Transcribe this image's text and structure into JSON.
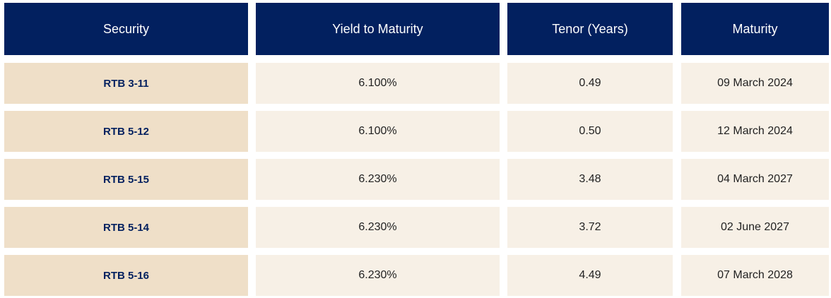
{
  "table": {
    "headers": [
      "Security",
      "Yield to Maturity",
      "Tenor (Years)",
      "Maturity"
    ],
    "rows": [
      [
        "RTB 3-11",
        "6.100%",
        "0.49",
        "09 March 2024"
      ],
      [
        "RTB 5-12",
        "6.100%",
        "0.50",
        "12 March 2024"
      ],
      [
        "RTB 5-15",
        "6.230%",
        "3.48",
        "04 March 2027"
      ],
      [
        "RTB 5-14",
        "6.230%",
        "3.72",
        "02 June 2027"
      ],
      [
        "RTB 5-16",
        "6.230%",
        "4.49",
        "07 March 2028"
      ]
    ]
  },
  "colors": {
    "header_bg": "#02205f",
    "header_text": "#ffffff",
    "security_col_bg": "#efdfc8",
    "security_col_text": "#02205f",
    "data_cell_bg": "#f7f0e6"
  }
}
